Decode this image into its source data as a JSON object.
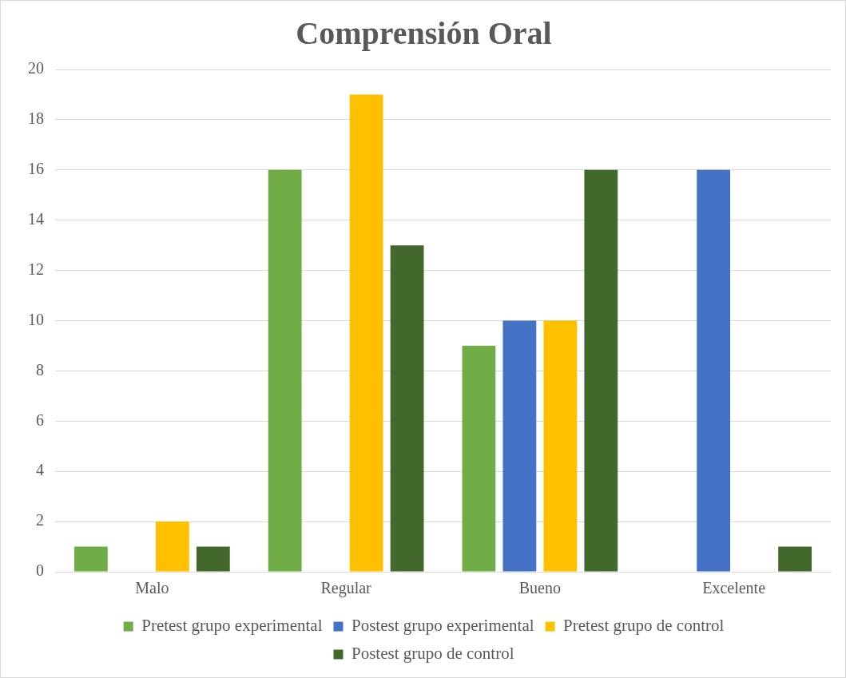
{
  "chart_data": {
    "type": "bar",
    "title": "Comprensión Oral",
    "categories": [
      "Malo",
      "Regular",
      "Bueno",
      "Excelente"
    ],
    "series": [
      {
        "name": "Pretest grupo experimental",
        "color": "#70ad47",
        "values": [
          1,
          16,
          9,
          0
        ]
      },
      {
        "name": "Postest grupo experimental",
        "color": "#4472c4",
        "values": [
          0,
          0,
          10,
          16
        ]
      },
      {
        "name": "Pretest grupo de control",
        "color": "#ffc000",
        "values": [
          2,
          19,
          10,
          0
        ]
      },
      {
        "name": "Postest grupo de control",
        "color": "#43682b",
        "values": [
          1,
          13,
          16,
          1
        ]
      }
    ],
    "ylim": [
      0,
      20
    ],
    "yticks": [
      0,
      2,
      4,
      6,
      8,
      10,
      12,
      14,
      16,
      18,
      20
    ],
    "grid": "y",
    "legend": "bottom"
  }
}
